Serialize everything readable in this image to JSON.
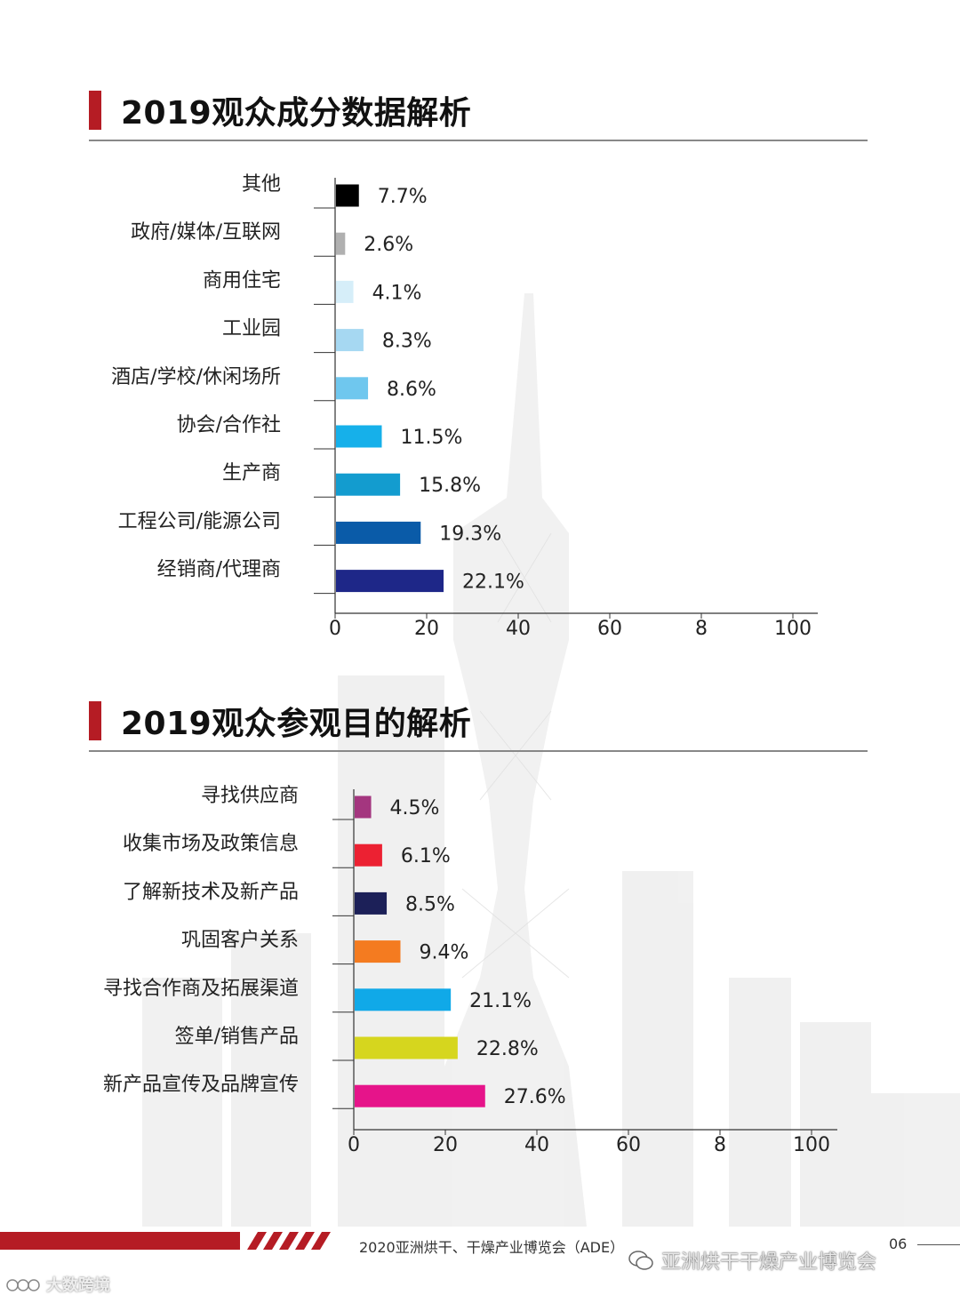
{
  "colors": {
    "accent": "#b51c24",
    "chart1": [
      "#000000",
      "#b0b0b0",
      "#d6eef9",
      "#a6d8f2",
      "#6fc7ee",
      "#16b0ea",
      "#139ccf",
      "#0a5ba8",
      "#1e2788"
    ],
    "chart2": [
      "#a4367f",
      "#ec2132",
      "#1c2058",
      "#f47b20",
      "#10a9e8",
      "#d6d61e",
      "#e6148a"
    ]
  },
  "chart_data": [
    {
      "type": "bar",
      "orientation": "horizontal",
      "title": "2019观众成分数据解析",
      "categories": [
        "其他",
        "政府/媒体/互联网",
        "商用住宅",
        "工业园",
        "酒店/学校/休闲场所",
        "协会/合作社",
        "生产商",
        "工程公司/能源公司",
        "经销商/代理商"
      ],
      "values": [
        7.7,
        2.6,
        4.1,
        8.3,
        8.6,
        11.5,
        15.8,
        19.3,
        22.1
      ],
      "value_labels": [
        "7.7%",
        "2.6%",
        "4.1%",
        "8.3%",
        "8.6%",
        "11.5%",
        "15.8%",
        "19.3%",
        "22.1%"
      ],
      "bar_extent": [
        5,
        2,
        3.8,
        6,
        7,
        10,
        14,
        18.5,
        23.5
      ],
      "xticks": [
        "0",
        "20",
        "40",
        "60",
        "8",
        "100"
      ],
      "xlim": [
        0,
        105
      ],
      "grid": false
    },
    {
      "type": "bar",
      "orientation": "horizontal",
      "title": "2019观众参观目的解析",
      "categories": [
        "寻找供应商",
        "收集市场及政策信息",
        "了解新技术及新产品",
        "巩固客户关系",
        "寻找合作商及拓展渠道",
        "签单/销售产品",
        "新产品宣传及品牌宣传"
      ],
      "values": [
        4.5,
        6.1,
        8.5,
        9.4,
        21.1,
        22.8,
        27.6
      ],
      "value_labels": [
        "4.5%",
        "6.1%",
        "8.5%",
        "9.4%",
        "21.1%",
        "22.8%",
        "27.6%"
      ],
      "bar_extent": [
        3.6,
        6,
        7,
        10,
        21,
        22.5,
        28.5
      ],
      "xticks": [
        "0",
        "20",
        "40",
        "60",
        "8",
        "100"
      ],
      "xlim": [
        0,
        105
      ],
      "grid": false
    }
  ],
  "footer": {
    "text": "2020亚洲烘干、干燥产业博览会（ADE）",
    "page": "06"
  },
  "watermarks": {
    "wechat": "亚洲烘干干燥产业博览会",
    "corner": "大数跨境"
  }
}
